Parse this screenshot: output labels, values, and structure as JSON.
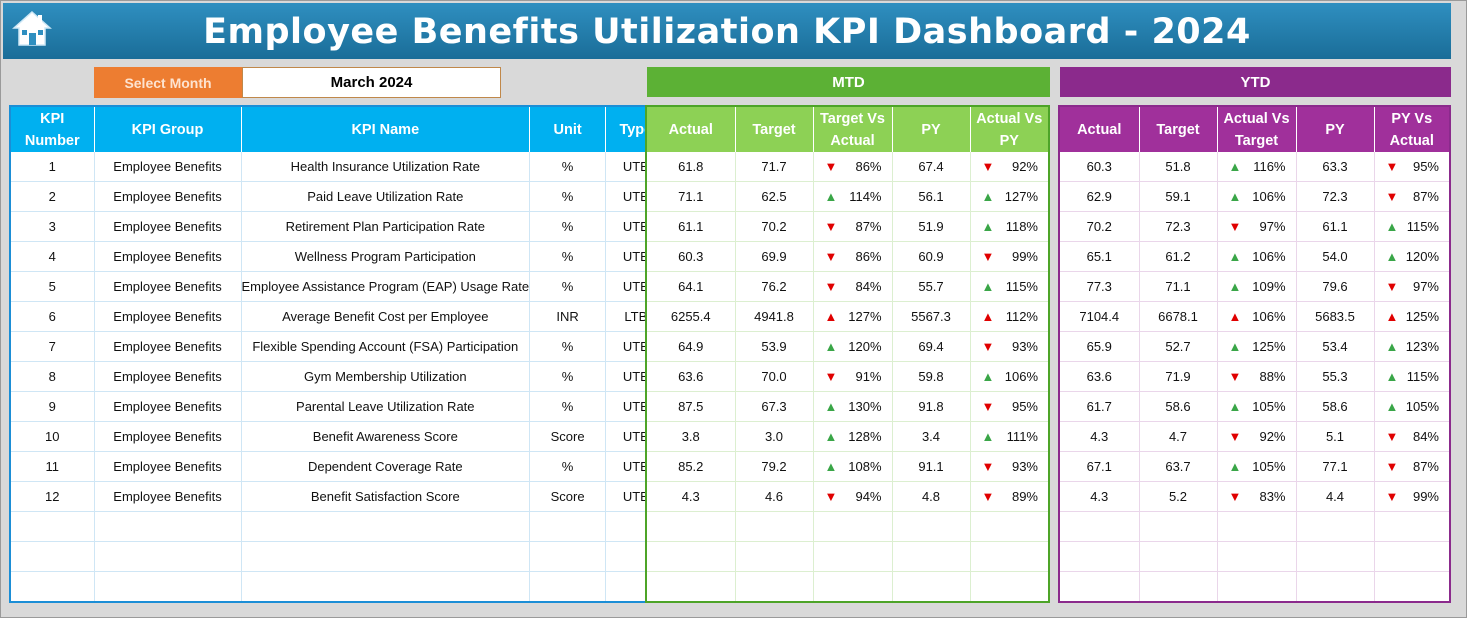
{
  "header": {
    "title": "Employee Benefits Utilization KPI Dashboard - 2024",
    "home_icon": "home-icon"
  },
  "selector": {
    "label": "Select Month",
    "value": "March 2024"
  },
  "sections": {
    "mtd": "MTD",
    "ytd": "YTD"
  },
  "colors": {
    "title_bar": "#1f7aaa",
    "kpi_header": "#00b0f0",
    "mtd_header": "#5cb135",
    "ytd_header": "#8b2a8c",
    "select_label": "#ed7d31",
    "good": "#3aa648",
    "bad": "#e00000"
  },
  "kpi_columns": [
    "KPI Number",
    "KPI Group",
    "KPI Name",
    "Unit",
    "Type"
  ],
  "mtd_columns": [
    "Actual",
    "Target",
    "Target Vs Actual",
    "PY",
    "Actual Vs PY"
  ],
  "ytd_columns": [
    "Actual",
    "Target",
    "Actual Vs Target",
    "PY",
    "PY Vs Actual"
  ],
  "rows": [
    {
      "num": "1",
      "group": "Employee Benefits",
      "name": "Health Insurance Utilization Rate",
      "unit": "%",
      "type": "UTB",
      "mtd": {
        "actual": "61.8",
        "target": "71.7",
        "tva": "86%",
        "tva_dir": "down",
        "py": "67.4",
        "avp": "92%",
        "avp_dir": "down"
      },
      "ytd": {
        "actual": "60.3",
        "target": "51.8",
        "avt": "116%",
        "avt_dir": "up",
        "py": "63.3",
        "pva": "95%",
        "pva_dir": "down"
      }
    },
    {
      "num": "2",
      "group": "Employee Benefits",
      "name": "Paid Leave Utilization Rate",
      "unit": "%",
      "type": "UTB",
      "mtd": {
        "actual": "71.1",
        "target": "62.5",
        "tva": "114%",
        "tva_dir": "up",
        "py": "56.1",
        "avp": "127%",
        "avp_dir": "up"
      },
      "ytd": {
        "actual": "62.9",
        "target": "59.1",
        "avt": "106%",
        "avt_dir": "up",
        "py": "72.3",
        "pva": "87%",
        "pva_dir": "down"
      }
    },
    {
      "num": "3",
      "group": "Employee Benefits",
      "name": "Retirement Plan Participation Rate",
      "unit": "%",
      "type": "UTB",
      "mtd": {
        "actual": "61.1",
        "target": "70.2",
        "tva": "87%",
        "tva_dir": "down",
        "py": "51.9",
        "avp": "118%",
        "avp_dir": "up"
      },
      "ytd": {
        "actual": "70.2",
        "target": "72.3",
        "avt": "97%",
        "avt_dir": "down",
        "py": "61.1",
        "pva": "115%",
        "pva_dir": "up"
      }
    },
    {
      "num": "4",
      "group": "Employee Benefits",
      "name": "Wellness Program Participation",
      "unit": "%",
      "type": "UTB",
      "mtd": {
        "actual": "60.3",
        "target": "69.9",
        "tva": "86%",
        "tva_dir": "down",
        "py": "60.9",
        "avp": "99%",
        "avp_dir": "down"
      },
      "ytd": {
        "actual": "65.1",
        "target": "61.2",
        "avt": "106%",
        "avt_dir": "up",
        "py": "54.0",
        "pva": "120%",
        "pva_dir": "up"
      }
    },
    {
      "num": "5",
      "group": "Employee Benefits",
      "name": "Employee Assistance Program (EAP) Usage Rate",
      "unit": "%",
      "type": "UTB",
      "mtd": {
        "actual": "64.1",
        "target": "76.2",
        "tva": "84%",
        "tva_dir": "down",
        "py": "55.7",
        "avp": "115%",
        "avp_dir": "up"
      },
      "ytd": {
        "actual": "77.3",
        "target": "71.1",
        "avt": "109%",
        "avt_dir": "up",
        "py": "79.6",
        "pva": "97%",
        "pva_dir": "down"
      }
    },
    {
      "num": "6",
      "group": "Employee Benefits",
      "name": "Average Benefit Cost per Employee",
      "unit": "INR",
      "type": "LTB",
      "mtd": {
        "actual": "6255.4",
        "target": "4941.8",
        "tva": "127%",
        "tva_dir": "up-bad",
        "py": "5567.3",
        "avp": "112%",
        "avp_dir": "up-bad"
      },
      "ytd": {
        "actual": "7104.4",
        "target": "6678.1",
        "avt": "106%",
        "avt_dir": "up-bad",
        "py": "5683.5",
        "pva": "125%",
        "pva_dir": "up-bad"
      }
    },
    {
      "num": "7",
      "group": "Employee Benefits",
      "name": "Flexible Spending Account (FSA) Participation",
      "unit": "%",
      "type": "UTB",
      "mtd": {
        "actual": "64.9",
        "target": "53.9",
        "tva": "120%",
        "tva_dir": "up",
        "py": "69.4",
        "avp": "93%",
        "avp_dir": "down"
      },
      "ytd": {
        "actual": "65.9",
        "target": "52.7",
        "avt": "125%",
        "avt_dir": "up",
        "py": "53.4",
        "pva": "123%",
        "pva_dir": "up"
      }
    },
    {
      "num": "8",
      "group": "Employee Benefits",
      "name": "Gym Membership Utilization",
      "unit": "%",
      "type": "UTB",
      "mtd": {
        "actual": "63.6",
        "target": "70.0",
        "tva": "91%",
        "tva_dir": "down",
        "py": "59.8",
        "avp": "106%",
        "avp_dir": "up"
      },
      "ytd": {
        "actual": "63.6",
        "target": "71.9",
        "avt": "88%",
        "avt_dir": "down",
        "py": "55.3",
        "pva": "115%",
        "pva_dir": "up"
      }
    },
    {
      "num": "9",
      "group": "Employee Benefits",
      "name": "Parental Leave Utilization Rate",
      "unit": "%",
      "type": "UTB",
      "mtd": {
        "actual": "87.5",
        "target": "67.3",
        "tva": "130%",
        "tva_dir": "up",
        "py": "91.8",
        "avp": "95%",
        "avp_dir": "down"
      },
      "ytd": {
        "actual": "61.7",
        "target": "58.6",
        "avt": "105%",
        "avt_dir": "up",
        "py": "58.6",
        "pva": "105%",
        "pva_dir": "up"
      }
    },
    {
      "num": "10",
      "group": "Employee Benefits",
      "name": "Benefit Awareness Score",
      "unit": "Score",
      "type": "UTB",
      "mtd": {
        "actual": "3.8",
        "target": "3.0",
        "tva": "128%",
        "tva_dir": "up",
        "py": "3.4",
        "avp": "111%",
        "avp_dir": "up"
      },
      "ytd": {
        "actual": "4.3",
        "target": "4.7",
        "avt": "92%",
        "avt_dir": "down",
        "py": "5.1",
        "pva": "84%",
        "pva_dir": "down"
      }
    },
    {
      "num": "11",
      "group": "Employee Benefits",
      "name": "Dependent Coverage Rate",
      "unit": "%",
      "type": "UTB",
      "mtd": {
        "actual": "85.2",
        "target": "79.2",
        "tva": "108%",
        "tva_dir": "up",
        "py": "91.1",
        "avp": "93%",
        "avp_dir": "down"
      },
      "ytd": {
        "actual": "67.1",
        "target": "63.7",
        "avt": "105%",
        "avt_dir": "up",
        "py": "77.1",
        "pva": "87%",
        "pva_dir": "down"
      }
    },
    {
      "num": "12",
      "group": "Employee Benefits",
      "name": "Benefit Satisfaction Score",
      "unit": "Score",
      "type": "UTB",
      "mtd": {
        "actual": "4.3",
        "target": "4.6",
        "tva": "94%",
        "tva_dir": "down",
        "py": "4.8",
        "avp": "89%",
        "avp_dir": "down"
      },
      "ytd": {
        "actual": "4.3",
        "target": "5.2",
        "avt": "83%",
        "avt_dir": "down",
        "py": "4.4",
        "pva": "99%",
        "pva_dir": "down"
      }
    }
  ]
}
